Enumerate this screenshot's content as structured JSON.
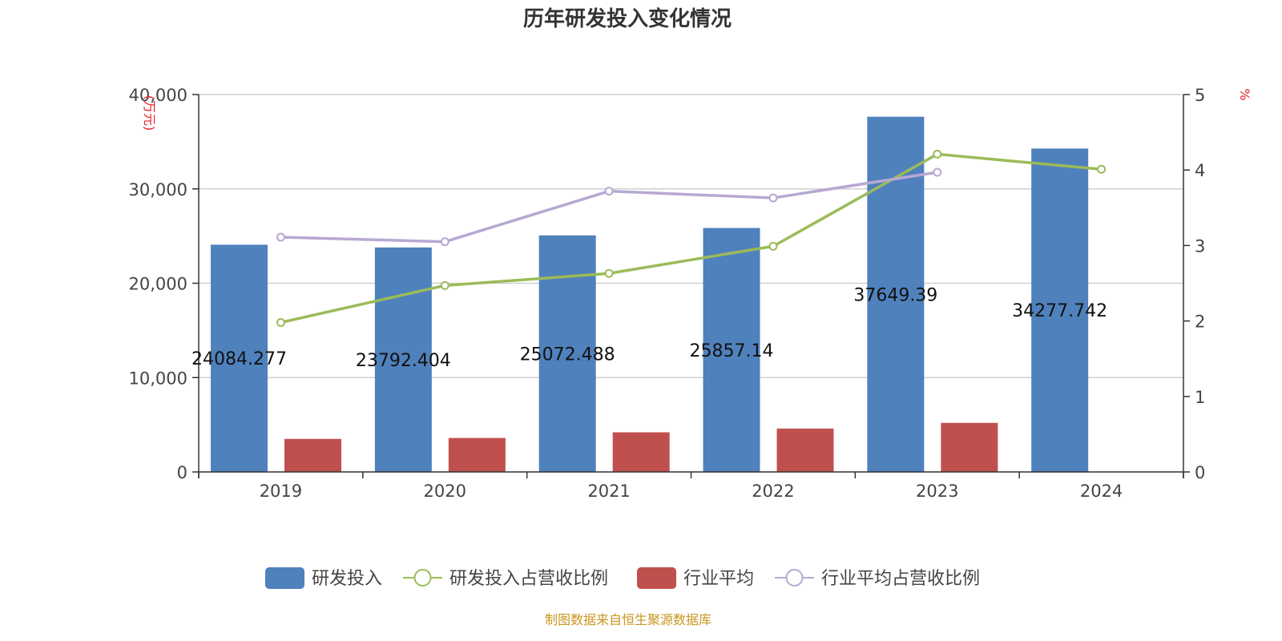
{
  "chart_data": {
    "type": "bar",
    "title": "历年研发投入变化情况",
    "categories": [
      "2019",
      "2020",
      "2021",
      "2022",
      "2023",
      "2024"
    ],
    "left_axis": {
      "unit": "(万元)",
      "min": 0,
      "max": 40000,
      "ticks": [
        "0",
        "10,000",
        "20,000",
        "30,000",
        "40,000"
      ],
      "tick_values": [
        0,
        10000,
        20000,
        30000,
        40000
      ]
    },
    "right_axis": {
      "unit": "%",
      "min": 0,
      "max": 5,
      "ticks": [
        "0",
        "1",
        "2",
        "3",
        "4",
        "5"
      ],
      "tick_values": [
        0,
        1,
        2,
        3,
        4,
        5
      ]
    },
    "series": [
      {
        "name": "研发投入",
        "kind": "bar",
        "axis": "left",
        "color": "#4f81bd",
        "values": [
          24084.277,
          23792.404,
          25072.488,
          25857.14,
          37649.39,
          34277.742
        ],
        "labels": [
          "24084.277",
          "23792.404",
          "25072.488",
          "25857.14",
          "37649.39",
          "34277.742"
        ]
      },
      {
        "name": "研发投入占营收比例",
        "kind": "line",
        "axis": "right",
        "color": "#9bbb59",
        "values": [
          1.98,
          2.47,
          2.63,
          2.99,
          4.21,
          4.01
        ]
      },
      {
        "name": "行业平均",
        "kind": "bar",
        "axis": "left",
        "color": "#c0504d",
        "values": [
          3500,
          3600,
          4200,
          4600,
          5200,
          null
        ]
      },
      {
        "name": "行业平均占营收比例",
        "kind": "line",
        "axis": "right",
        "color": "#b7a8d3",
        "values": [
          3.11,
          3.05,
          3.72,
          3.63,
          3.97,
          null
        ]
      }
    ],
    "grid": true,
    "legend_position": "bottom"
  },
  "source_note": "制图数据来自恒生聚源数据库"
}
